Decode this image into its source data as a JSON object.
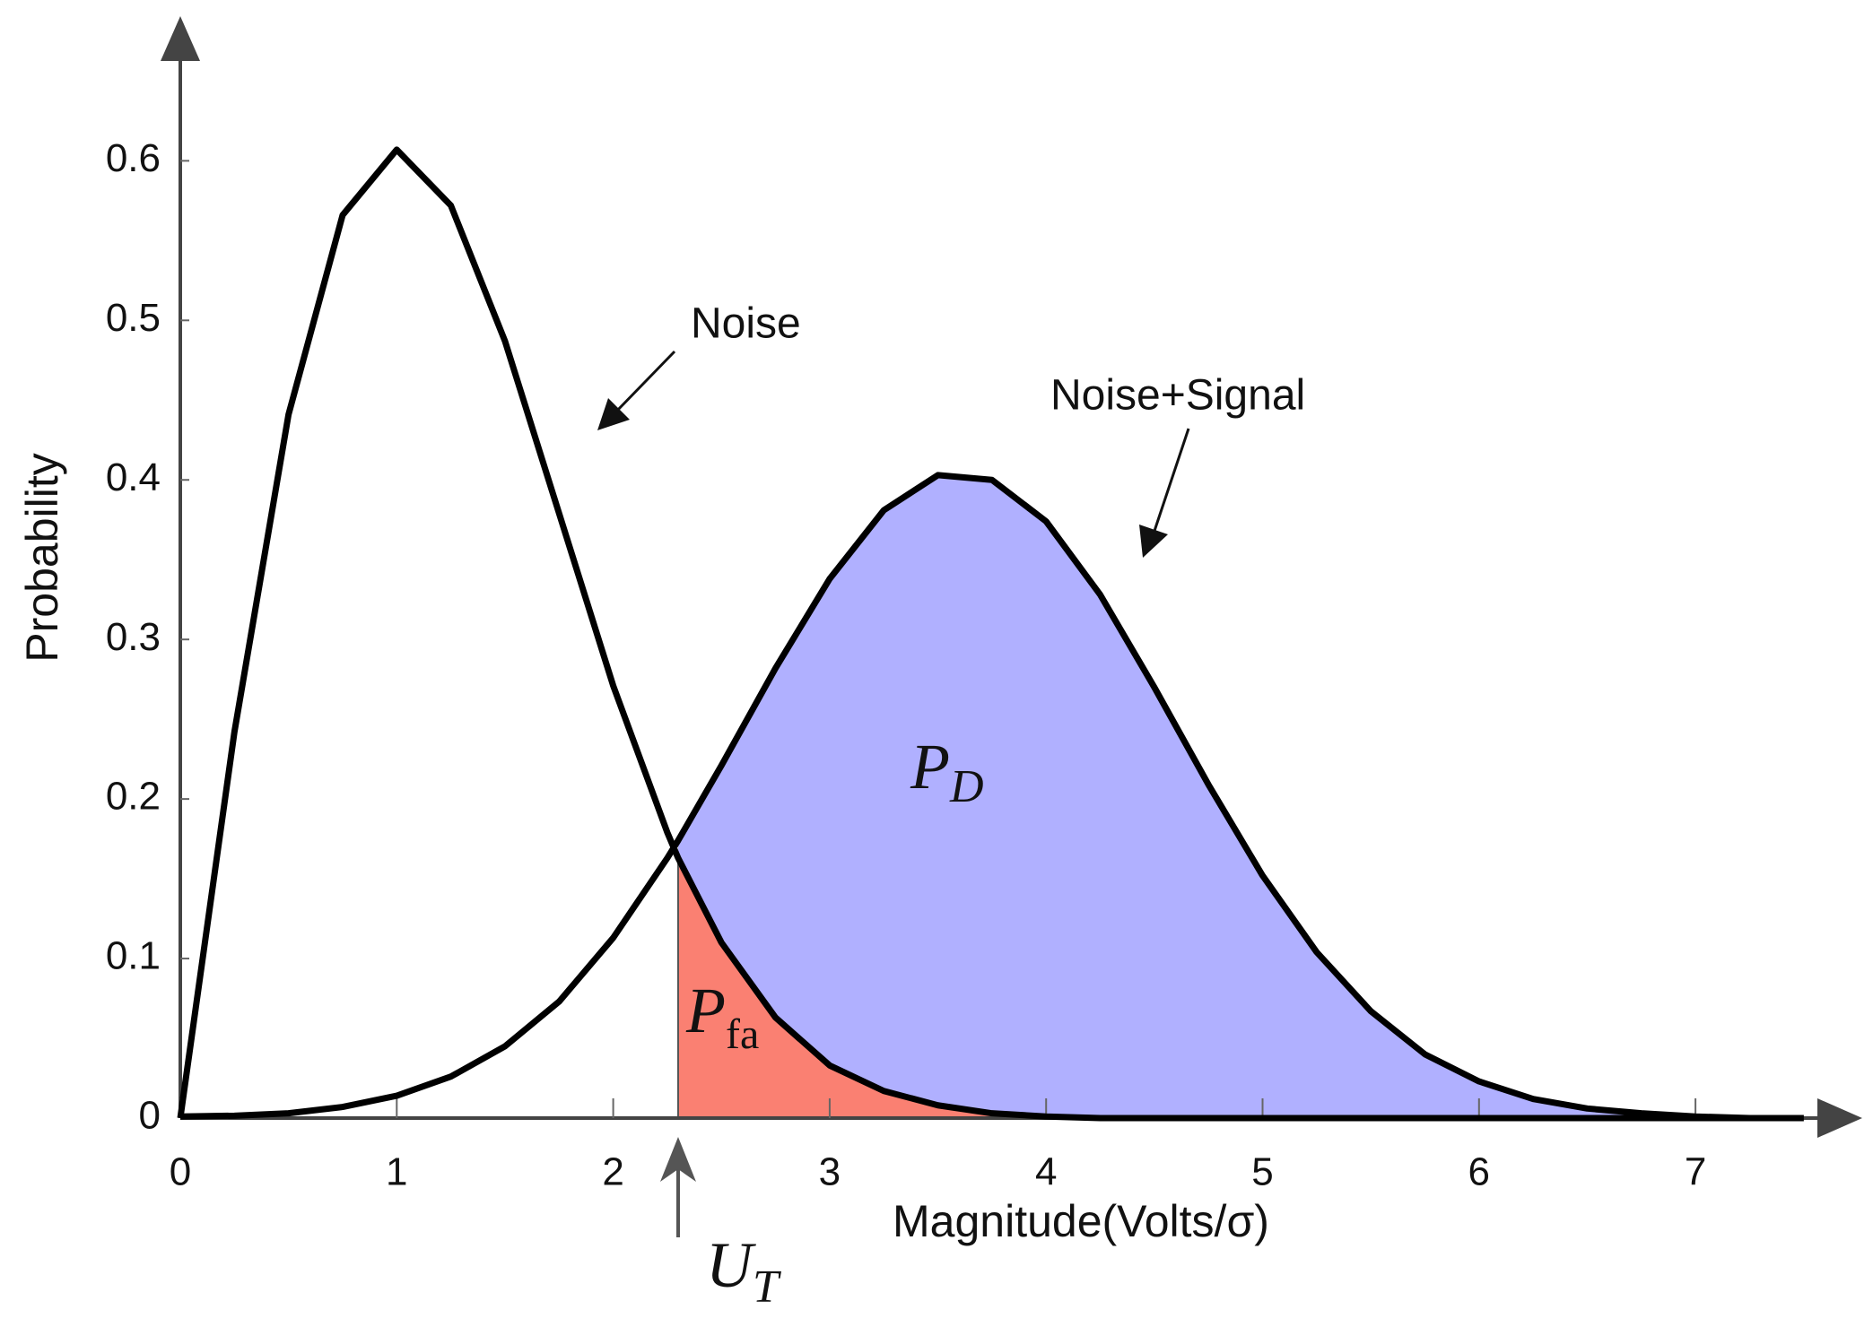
{
  "chart_data": {
    "type": "line",
    "xlabel": "Magnitude(Volts/σ)",
    "ylabel": "Probability",
    "x": [
      0,
      0.25,
      0.5,
      0.75,
      1,
      1.25,
      1.5,
      1.75,
      2,
      2.25,
      2.3,
      2.5,
      2.75,
      3,
      3.25,
      3.5,
      3.75,
      4,
      4.25,
      4.5,
      4.75,
      5,
      5.25,
      5.5,
      5.75,
      6,
      6.25,
      6.5,
      6.75,
      7,
      7.25,
      7.5
    ],
    "series": [
      {
        "name": "Noise",
        "color": "#000000",
        "fill": "#fa8072",
        "values": [
          0,
          0.242,
          0.441,
          0.566,
          0.607,
          0.572,
          0.487,
          0.379,
          0.271,
          0.179,
          0.163,
          0.11,
          0.063,
          0.033,
          0.017,
          0.008,
          0.003,
          0.001,
          0,
          0,
          0,
          0,
          0,
          0,
          0,
          0,
          0,
          0,
          0,
          0,
          0,
          0
        ]
      },
      {
        "name": "Noise+Signal",
        "color": "#000000",
        "fill": "#b0b0ff",
        "values": [
          0.001,
          0.0015,
          0.003,
          0.007,
          0.014,
          0.026,
          0.045,
          0.073,
          0.113,
          0.163,
          0.174,
          0.221,
          0.282,
          0.338,
          0.381,
          0.403,
          0.4,
          0.374,
          0.328,
          0.27,
          0.209,
          0.152,
          0.104,
          0.067,
          0.04,
          0.023,
          0.012,
          0.006,
          0.003,
          0.001,
          0,
          0
        ]
      }
    ],
    "areas": [
      {
        "label": "P",
        "subscript": "D"
      },
      {
        "label": "P",
        "subscript": "fa"
      }
    ],
    "threshold": {
      "value": 2.3,
      "label": "U",
      "subscript": "T"
    },
    "xlim": [
      0,
      7.6
    ],
    "ylim": [
      0,
      0.68
    ],
    "xticks": [
      0,
      1,
      2,
      3,
      4,
      5,
      6,
      7
    ],
    "yticks": [
      0,
      0.1,
      0.2,
      0.3,
      0.4,
      0.5,
      0.6
    ],
    "grid": false
  }
}
